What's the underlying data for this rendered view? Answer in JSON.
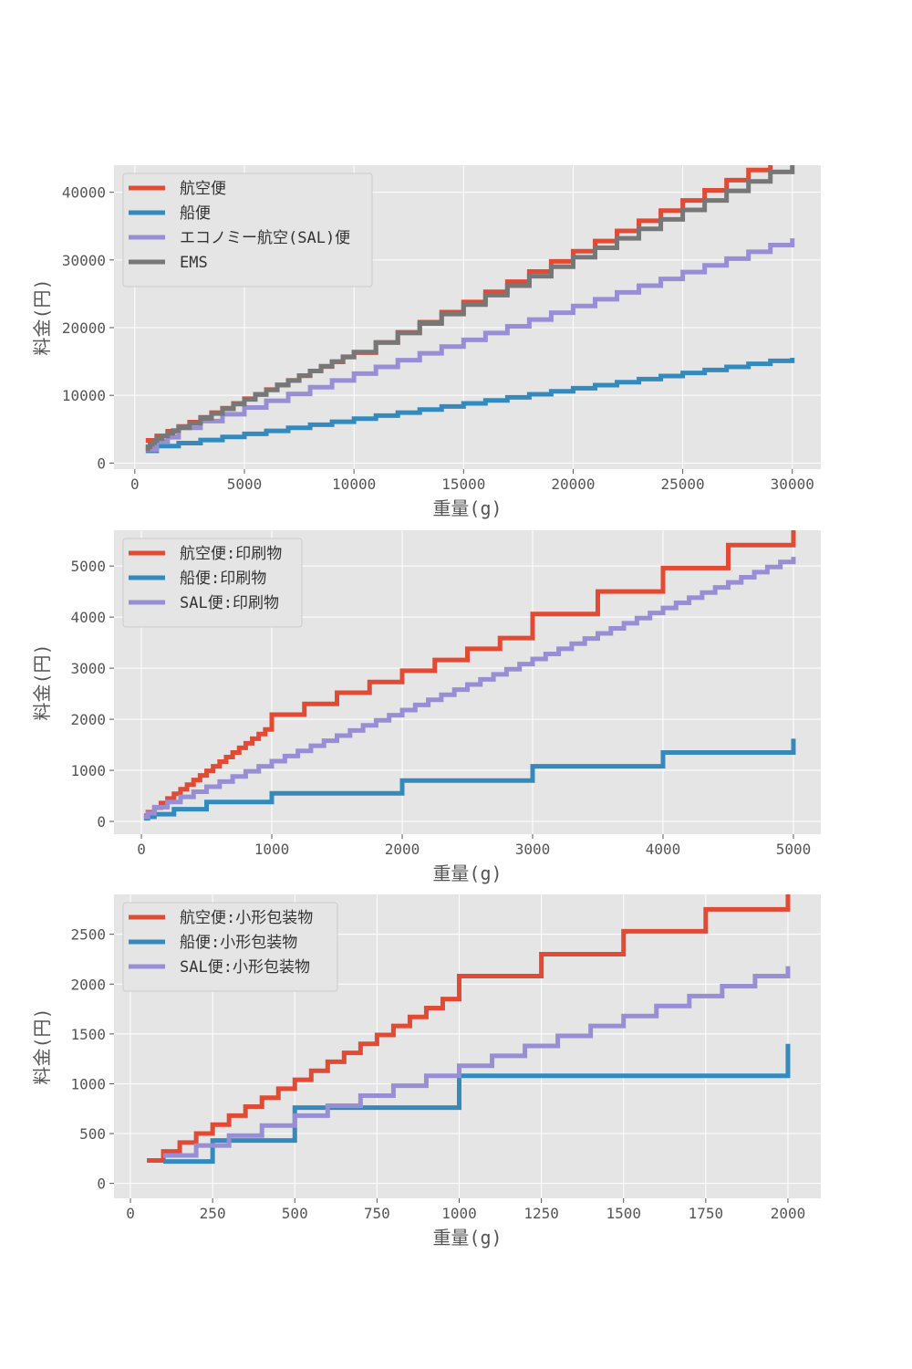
{
  "chart_data": [
    {
      "type": "line",
      "step": "post",
      "xlabel": "重量(g)",
      "ylabel": "料金(円)",
      "xlim": [
        -950,
        31300
      ],
      "ylim": [
        -900,
        44000
      ],
      "xticks": [
        0,
        5000,
        10000,
        15000,
        20000,
        25000,
        30000
      ],
      "yticks": [
        0,
        10000,
        20000,
        30000,
        40000
      ],
      "grid": true,
      "legend": "top-left",
      "series": [
        {
          "name": "航空便",
          "color": "#E24A33",
          "x": [
            500,
            1000,
            1500,
            2000,
            2500,
            3000,
            3500,
            4000,
            4500,
            5000,
            5500,
            6000,
            6500,
            7000,
            7500,
            8000,
            8500,
            9000,
            9500,
            10000,
            11000,
            12000,
            13000,
            14000,
            15000,
            16000,
            17000,
            18000,
            19000,
            20000,
            21000,
            22000,
            23000,
            24000,
            25000,
            26000,
            27000,
            28000,
            29000,
            30000
          ],
          "y": [
            3350,
            4000,
            4700,
            5400,
            6050,
            6750,
            7450,
            8100,
            8800,
            9500,
            10150,
            10850,
            11550,
            12200,
            12900,
            13600,
            14250,
            14950,
            15650,
            16300,
            17800,
            19300,
            20800,
            22300,
            23800,
            25300,
            26800,
            28300,
            29800,
            31300,
            32800,
            34300,
            35800,
            37300,
            38800,
            40300,
            41800,
            43300,
            44800,
            46300
          ]
        },
        {
          "name": "船便",
          "color": "#348ABD",
          "x": [
            500,
            1000,
            2000,
            3000,
            4000,
            5000,
            6000,
            7000,
            8000,
            9000,
            10000,
            11000,
            12000,
            13000,
            14000,
            15000,
            16000,
            17000,
            18000,
            19000,
            20000,
            21000,
            22000,
            23000,
            24000,
            25000,
            26000,
            27000,
            28000,
            29000,
            30000
          ],
          "y": [
            1800,
            2500,
            2950,
            3400,
            3850,
            4300,
            4750,
            5200,
            5650,
            6100,
            6550,
            7000,
            7450,
            7900,
            8350,
            8800,
            9250,
            9700,
            10150,
            10600,
            11050,
            11500,
            11950,
            12400,
            12850,
            13300,
            13750,
            14200,
            14650,
            15100,
            15550
          ]
        },
        {
          "name": "エコノミー航空(SAL)便",
          "color": "#988ED5",
          "x": [
            500,
            1000,
            1500,
            2000,
            3000,
            4000,
            5000,
            6000,
            7000,
            8000,
            9000,
            10000,
            11000,
            12000,
            13000,
            14000,
            15000,
            16000,
            17000,
            18000,
            19000,
            20000,
            21000,
            22000,
            23000,
            24000,
            25000,
            26000,
            27000,
            28000,
            29000,
            30000
          ],
          "y": [
            2000,
            3200,
            3800,
            5200,
            6200,
            7200,
            8200,
            9200,
            10200,
            11200,
            12200,
            13200,
            14200,
            15200,
            16200,
            17200,
            18200,
            19200,
            20200,
            21200,
            22200,
            23200,
            24200,
            25200,
            26200,
            27200,
            28200,
            29200,
            30200,
            31200,
            32200,
            33200
          ]
        },
        {
          "name": "EMS",
          "color": "#777777",
          "x": [
            500,
            600,
            700,
            800,
            900,
            1000,
            1250,
            1500,
            1750,
            2000,
            2500,
            3000,
            3500,
            4000,
            4500,
            5000,
            5500,
            6000,
            6500,
            7000,
            7500,
            8000,
            8500,
            9000,
            9500,
            10000,
            11000,
            12000,
            13000,
            14000,
            15000,
            16000,
            17000,
            18000,
            19000,
            20000,
            21000,
            22000,
            23000,
            24000,
            25000,
            26000,
            27000,
            28000,
            29000,
            30000
          ],
          "y": [
            2100,
            2400,
            2700,
            3000,
            3300,
            3600,
            4000,
            4400,
            4800,
            5200,
            5900,
            6600,
            7300,
            8000,
            8700,
            9400,
            10100,
            10800,
            11500,
            12200,
            12900,
            13600,
            14300,
            15000,
            15700,
            16400,
            17800,
            19200,
            20600,
            22000,
            23400,
            24800,
            26200,
            27600,
            29000,
            30400,
            31800,
            33200,
            34600,
            36000,
            37400,
            38800,
            40200,
            41600,
            43000,
            44400
          ]
        }
      ]
    },
    {
      "type": "line",
      "step": "post",
      "xlabel": "重量(g)",
      "ylabel": "料金(円)",
      "xlim": [
        -210,
        5210
      ],
      "ylim": [
        -250,
        5700
      ],
      "xticks": [
        0,
        1000,
        2000,
        3000,
        4000,
        5000
      ],
      "yticks": [
        0,
        1000,
        2000,
        3000,
        4000,
        5000
      ],
      "grid": true,
      "legend": "top-left",
      "series": [
        {
          "name": "航空便:印刷物",
          "color": "#E24A33",
          "x": [
            20,
            50,
            100,
            150,
            200,
            250,
            300,
            350,
            400,
            450,
            500,
            550,
            600,
            650,
            700,
            750,
            800,
            850,
            900,
            950,
            1000,
            1250,
            1500,
            1750,
            2000,
            2250,
            2500,
            2750,
            3000,
            3500,
            4000,
            4500,
            5000
          ],
          "y": [
            110,
            180,
            270,
            360,
            450,
            540,
            630,
            720,
            810,
            900,
            990,
            1080,
            1170,
            1260,
            1350,
            1440,
            1530,
            1620,
            1710,
            1800,
            2090,
            2300,
            2520,
            2730,
            2950,
            3160,
            3380,
            3590,
            4060,
            4500,
            4960,
            5410,
            5860
          ]
        },
        {
          "name": "船便:印刷物",
          "color": "#348ABD",
          "x": [
            20,
            50,
            100,
            250,
            500,
            1000,
            2000,
            3000,
            4000,
            5000
          ],
          "y": [
            60,
            90,
            140,
            240,
            380,
            550,
            800,
            1080,
            1350,
            1620
          ]
        },
        {
          "name": "SAL便:印刷物",
          "color": "#988ED5",
          "x": [
            20,
            50,
            100,
            200,
            300,
            400,
            500,
            600,
            700,
            800,
            900,
            1000,
            1100,
            1200,
            1300,
            1400,
            1500,
            1600,
            1700,
            1800,
            1900,
            2000,
            2100,
            2200,
            2300,
            2400,
            2500,
            2600,
            2700,
            2800,
            2900,
            3000,
            3100,
            3200,
            3300,
            3400,
            3500,
            3600,
            3700,
            3800,
            3900,
            4000,
            4100,
            4200,
            4300,
            4400,
            4500,
            4600,
            4700,
            4800,
            4900,
            5000
          ],
          "y": [
            90,
            160,
            280,
            380,
            480,
            580,
            680,
            780,
            880,
            980,
            1080,
            1180,
            1280,
            1380,
            1480,
            1580,
            1680,
            1780,
            1880,
            1980,
            2080,
            2180,
            2280,
            2380,
            2480,
            2580,
            2680,
            2780,
            2880,
            2980,
            3080,
            3180,
            3280,
            3380,
            3480,
            3580,
            3680,
            3780,
            3880,
            3980,
            4080,
            4180,
            4280,
            4380,
            4480,
            4580,
            4680,
            4780,
            4880,
            4980,
            5080,
            5180
          ]
        }
      ]
    },
    {
      "type": "line",
      "step": "post",
      "xlabel": "重量(g)",
      "ylabel": "料金(円)",
      "xlim": [
        -50,
        2100
      ],
      "ylim": [
        -150,
        2900
      ],
      "xticks": [
        0,
        250,
        500,
        750,
        1000,
        1250,
        1500,
        1750,
        2000
      ],
      "yticks": [
        0,
        500,
        1000,
        1500,
        2000,
        2500
      ],
      "grid": true,
      "legend": "top-left",
      "series": [
        {
          "name": "航空便:小形包装物",
          "color": "#E24A33",
          "x": [
            50,
            100,
            150,
            200,
            250,
            300,
            350,
            400,
            450,
            500,
            550,
            600,
            650,
            700,
            750,
            800,
            850,
            900,
            950,
            1000,
            1250,
            1500,
            1750,
            2000
          ],
          "y": [
            230,
            320,
            410,
            500,
            590,
            680,
            770,
            860,
            950,
            1040,
            1130,
            1220,
            1310,
            1400,
            1490,
            1580,
            1670,
            1760,
            1850,
            2080,
            2300,
            2530,
            2750,
            2980
          ]
        },
        {
          "name": "船便:小形包装物",
          "color": "#348ABD",
          "x": [
            100,
            250,
            500,
            1000,
            2000
          ],
          "y": [
            220,
            430,
            760,
            1080,
            1400
          ]
        },
        {
          "name": "SAL便:小形包装物",
          "color": "#988ED5",
          "x": [
            100,
            200,
            300,
            400,
            500,
            600,
            700,
            800,
            900,
            1000,
            1100,
            1200,
            1300,
            1400,
            1500,
            1600,
            1700,
            1800,
            1900,
            2000
          ],
          "y": [
            280,
            380,
            480,
            580,
            680,
            780,
            880,
            980,
            1080,
            1180,
            1280,
            1380,
            1480,
            1580,
            1680,
            1780,
            1880,
            1980,
            2080,
            2180
          ]
        }
      ]
    }
  ]
}
